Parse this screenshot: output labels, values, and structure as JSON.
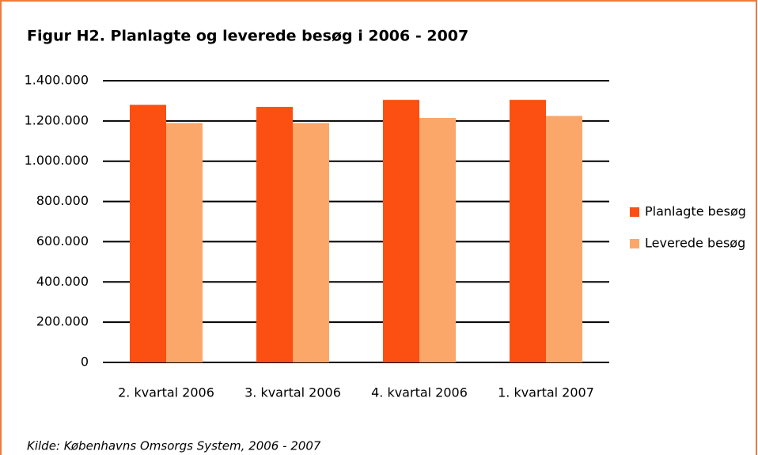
{
  "chart_data": {
    "type": "bar",
    "title": "Figur H2. Planlagte og leverede besøg i 2006 - 2007",
    "categories": [
      "2. kvartal 2006",
      "3. kvartal 2006",
      "4. kvartal 2006",
      "1. kvartal 2007"
    ],
    "series": [
      {
        "name": "Planlagte besøg",
        "color": "#fc4f12",
        "values": [
          1280000,
          1270000,
          1305000,
          1305000
        ]
      },
      {
        "name": "Leverede besøg",
        "color": "#fba76a",
        "values": [
          1190000,
          1190000,
          1215000,
          1225000
        ]
      }
    ],
    "ylim": [
      0,
      1400000
    ],
    "yticks": [
      0,
      {
        "value": 200000,
        "label": "200.000"
      },
      {
        "value": 400000,
        "label": "400.000"
      },
      {
        "value": 600000,
        "label": "600.000"
      },
      {
        "value": 800000,
        "label": "800.000"
      },
      {
        "value": 1000000,
        "label": "1.000.000"
      },
      {
        "value": 1200000,
        "label": "1.200.000"
      },
      {
        "value": 1400000,
        "label": "1.400.000"
      }
    ],
    "grid": true,
    "legend": "right",
    "source": "Kilde: Københavns Omsorgs System, 2006 - 2007"
  }
}
